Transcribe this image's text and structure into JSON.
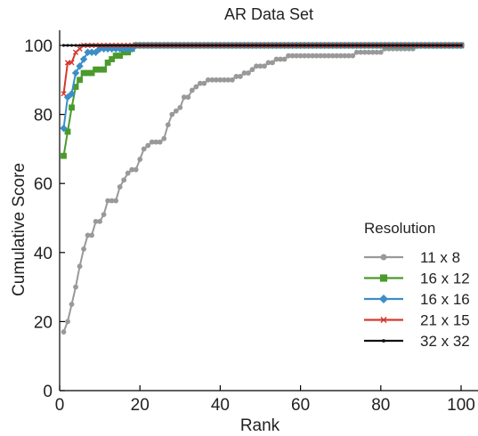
{
  "chart_data": {
    "type": "line",
    "title": "AR Data Set",
    "xlabel": "Rank",
    "ylabel": "Cumulative Score",
    "xlim": [
      0,
      102
    ],
    "ylim": [
      0,
      105
    ],
    "xticks": [
      0,
      20,
      40,
      60,
      80,
      100
    ],
    "yticks": [
      0,
      20,
      40,
      60,
      80,
      100
    ],
    "grid": false,
    "legend_title": "Resolution",
    "legend_position": "lower-right",
    "series": [
      {
        "name": "11 x 8",
        "color": "#999999",
        "marker": "circle",
        "x": [
          1,
          2,
          3,
          4,
          5,
          6,
          7,
          8,
          9,
          10,
          11,
          12,
          13,
          14,
          15,
          16,
          17,
          18,
          19,
          20,
          21,
          22,
          23,
          24,
          25,
          26,
          27,
          28,
          29,
          30,
          31,
          32,
          33,
          34,
          35,
          36,
          37,
          38,
          39,
          40,
          41,
          42,
          43,
          44,
          45,
          46,
          47,
          48,
          49,
          50,
          51,
          52,
          53,
          54,
          55,
          56,
          57,
          58,
          59,
          60,
          61,
          62,
          63,
          64,
          65,
          66,
          67,
          68,
          69,
          70,
          71,
          72,
          73,
          74,
          75,
          76,
          77,
          78,
          79,
          80,
          81,
          82,
          83,
          84,
          85,
          86,
          87,
          88,
          89,
          90,
          91,
          92,
          93,
          94,
          95,
          96,
          97,
          98,
          99,
          100
        ],
        "values": [
          17,
          20,
          25,
          30,
          36,
          41,
          45,
          45,
          49,
          49,
          51,
          55,
          55,
          55,
          59,
          61,
          63,
          64,
          64,
          67,
          70,
          71,
          72,
          72,
          72,
          73,
          77,
          80,
          81,
          82,
          85,
          85,
          87,
          88,
          89,
          89,
          90,
          90,
          90,
          90,
          90,
          90,
          90,
          91,
          91,
          92,
          92,
          93,
          94,
          94,
          94,
          95,
          95,
          96,
          96,
          96,
          97,
          97,
          97,
          97,
          97,
          97,
          97,
          97,
          97,
          97,
          97,
          97,
          97,
          97,
          97,
          97,
          97,
          98,
          98,
          98,
          98,
          98,
          98,
          98,
          99,
          99,
          99,
          99,
          99,
          99,
          99,
          99,
          100,
          100,
          100,
          100,
          100,
          100,
          100,
          100,
          100,
          100,
          100,
          100
        ]
      },
      {
        "name": "16 x 12",
        "color": "#4a9a2c",
        "marker": "square",
        "x": [
          1,
          2,
          3,
          4,
          5,
          6,
          7,
          8,
          9,
          10,
          11,
          12,
          13,
          14,
          15,
          16,
          17,
          18,
          19,
          20,
          21,
          22,
          23,
          24,
          25,
          26,
          27,
          28,
          29,
          30,
          31,
          32,
          33,
          34,
          35,
          36,
          37,
          38,
          39,
          40,
          41,
          42,
          43,
          44,
          45,
          46,
          47,
          48,
          49,
          50,
          51,
          52,
          53,
          54,
          55,
          56,
          57,
          58,
          59,
          60,
          61,
          62,
          63,
          64,
          65,
          66,
          67,
          68,
          69,
          70,
          71,
          72,
          73,
          74,
          75,
          76,
          77,
          78,
          79,
          80,
          81,
          82,
          83,
          84,
          85,
          86,
          87,
          88,
          89,
          90,
          91,
          92,
          93,
          94,
          95,
          96,
          97,
          98,
          99,
          100
        ],
        "values": [
          68,
          75,
          82,
          88,
          90,
          92,
          92,
          92,
          93,
          93,
          93,
          95,
          96,
          97,
          97,
          98,
          98,
          99,
          100,
          100,
          100,
          100,
          100,
          100,
          100,
          100,
          100,
          100,
          100,
          100,
          100,
          100,
          100,
          100,
          100,
          100,
          100,
          100,
          100,
          100,
          100,
          100,
          100,
          100,
          100,
          100,
          100,
          100,
          100,
          100,
          100,
          100,
          100,
          100,
          100,
          100,
          100,
          100,
          100,
          100,
          100,
          100,
          100,
          100,
          100,
          100,
          100,
          100,
          100,
          100,
          100,
          100,
          100,
          100,
          100,
          100,
          100,
          100,
          100,
          100,
          100,
          100,
          100,
          100,
          100,
          100,
          100,
          100,
          100,
          100,
          100,
          100,
          100,
          100,
          100,
          100,
          100,
          100,
          100,
          100
        ]
      },
      {
        "name": "16 x 16",
        "color": "#3b8ec8",
        "marker": "diamond",
        "x": [
          1,
          2,
          3,
          4,
          5,
          6,
          7,
          8,
          9,
          10,
          11,
          12,
          13,
          14,
          15,
          16,
          17,
          18,
          19,
          20,
          21,
          22,
          23,
          24,
          25,
          26,
          27,
          28,
          29,
          30,
          31,
          32,
          33,
          34,
          35,
          36,
          37,
          38,
          39,
          40,
          41,
          42,
          43,
          44,
          45,
          46,
          47,
          48,
          49,
          50,
          51,
          52,
          53,
          54,
          55,
          56,
          57,
          58,
          59,
          60,
          61,
          62,
          63,
          64,
          65,
          66,
          67,
          68,
          69,
          70,
          71,
          72,
          73,
          74,
          75,
          76,
          77,
          78,
          79,
          80,
          81,
          82,
          83,
          84,
          85,
          86,
          87,
          88,
          89,
          90,
          91,
          92,
          93,
          94,
          95,
          96,
          97,
          98,
          99,
          100
        ],
        "values": [
          76,
          85,
          86,
          92,
          94,
          96,
          98,
          98,
          98,
          99,
          99,
          99,
          99,
          99,
          99,
          99,
          99,
          99,
          100,
          100,
          100,
          100,
          100,
          100,
          100,
          100,
          100,
          100,
          100,
          100,
          100,
          100,
          100,
          100,
          100,
          100,
          100,
          100,
          100,
          100,
          100,
          100,
          100,
          100,
          100,
          100,
          100,
          100,
          100,
          100,
          100,
          100,
          100,
          100,
          100,
          100,
          100,
          100,
          100,
          100,
          100,
          100,
          100,
          100,
          100,
          100,
          100,
          100,
          100,
          100,
          100,
          100,
          100,
          100,
          100,
          100,
          100,
          100,
          100,
          100,
          100,
          100,
          100,
          100,
          100,
          100,
          100,
          100,
          100,
          100,
          100,
          100,
          100,
          100,
          100,
          100,
          100,
          100,
          100,
          100
        ]
      },
      {
        "name": "21 x 15",
        "color": "#d23a2e",
        "marker": "x",
        "x": [
          1,
          2,
          3,
          4,
          5,
          6,
          7,
          8,
          9,
          10,
          11,
          12,
          13,
          14,
          15,
          16,
          17,
          18,
          19,
          20,
          21,
          22,
          23,
          24,
          25,
          26,
          27,
          28,
          29,
          30,
          31,
          32,
          33,
          34,
          35,
          36,
          37,
          38,
          39,
          40,
          41,
          42,
          43,
          44,
          45,
          46,
          47,
          48,
          49,
          50,
          51,
          52,
          53,
          54,
          55,
          56,
          57,
          58,
          59,
          60,
          61,
          62,
          63,
          64,
          65,
          66,
          67,
          68,
          69,
          70,
          71,
          72,
          73,
          74,
          75,
          76,
          77,
          78,
          79,
          80,
          81,
          82,
          83,
          84,
          85,
          86,
          87,
          88,
          89,
          90,
          91,
          92,
          93,
          94,
          95,
          96,
          97,
          98,
          99,
          100
        ],
        "values": [
          86,
          95,
          95,
          98,
          99,
          100,
          100,
          100,
          100,
          100,
          100,
          100,
          100,
          100,
          100,
          100,
          100,
          100,
          100,
          100,
          100,
          100,
          100,
          100,
          100,
          100,
          100,
          100,
          100,
          100,
          100,
          100,
          100,
          100,
          100,
          100,
          100,
          100,
          100,
          100,
          100,
          100,
          100,
          100,
          100,
          100,
          100,
          100,
          100,
          100,
          100,
          100,
          100,
          100,
          100,
          100,
          100,
          100,
          100,
          100,
          100,
          100,
          100,
          100,
          100,
          100,
          100,
          100,
          100,
          100,
          100,
          100,
          100,
          100,
          100,
          100,
          100,
          100,
          100,
          100,
          100,
          100,
          100,
          100,
          100,
          100,
          100,
          100,
          100,
          100,
          100,
          100,
          100,
          100,
          100,
          100,
          100,
          100,
          100,
          100
        ]
      },
      {
        "name": "32 x 32",
        "color": "#111111",
        "marker": "dot",
        "x": [
          1,
          2,
          3,
          4,
          5,
          6,
          7,
          8,
          9,
          10,
          11,
          12,
          13,
          14,
          15,
          16,
          17,
          18,
          19,
          20,
          21,
          22,
          23,
          24,
          25,
          26,
          27,
          28,
          29,
          30,
          31,
          32,
          33,
          34,
          35,
          36,
          37,
          38,
          39,
          40,
          41,
          42,
          43,
          44,
          45,
          46,
          47,
          48,
          49,
          50,
          51,
          52,
          53,
          54,
          55,
          56,
          57,
          58,
          59,
          60,
          61,
          62,
          63,
          64,
          65,
          66,
          67,
          68,
          69,
          70,
          71,
          72,
          73,
          74,
          75,
          76,
          77,
          78,
          79,
          80,
          81,
          82,
          83,
          84,
          85,
          86,
          87,
          88,
          89,
          90,
          91,
          92,
          93,
          94,
          95,
          96,
          97,
          98,
          99,
          100
        ],
        "values": [
          100,
          100,
          100,
          100,
          100,
          100,
          100,
          100,
          100,
          100,
          100,
          100,
          100,
          100,
          100,
          100,
          100,
          100,
          100,
          100,
          100,
          100,
          100,
          100,
          100,
          100,
          100,
          100,
          100,
          100,
          100,
          100,
          100,
          100,
          100,
          100,
          100,
          100,
          100,
          100,
          100,
          100,
          100,
          100,
          100,
          100,
          100,
          100,
          100,
          100,
          100,
          100,
          100,
          100,
          100,
          100,
          100,
          100,
          100,
          100,
          100,
          100,
          100,
          100,
          100,
          100,
          100,
          100,
          100,
          100,
          100,
          100,
          100,
          100,
          100,
          100,
          100,
          100,
          100,
          100,
          100,
          100,
          100,
          100,
          100,
          100,
          100,
          100,
          100,
          100,
          100,
          100,
          100,
          100,
          100,
          100,
          100,
          100,
          100,
          100
        ]
      }
    ]
  }
}
